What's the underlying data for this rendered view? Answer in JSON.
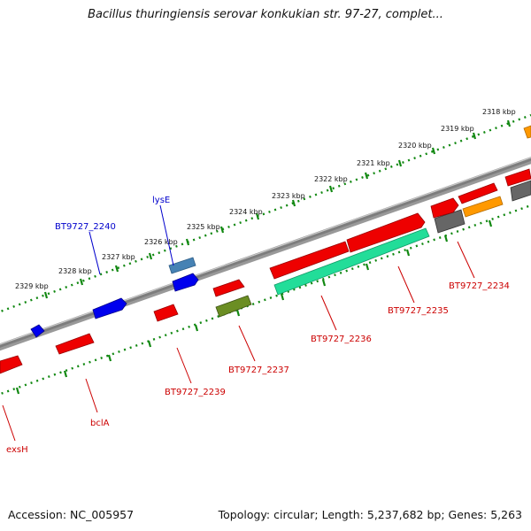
{
  "header": {
    "title": "Bacillus thuringiensis serovar konkukian str. 97-27, complet..."
  },
  "footer": {
    "accession": "Accession: NC_005957",
    "summary": "Topology: circular; Length: 5,237,682 bp; Genes: 5,263"
  },
  "scale_labels": [
    "2318 kbp",
    "2319 kbp",
    "2320 kbp",
    "2321 kbp",
    "2322 kbp",
    "2323 kbp",
    "2324 kbp",
    "2325 kbp",
    "2326 kbp",
    "2327 kbp",
    "2328 kbp",
    "2329 kbp"
  ],
  "gene_labels": [
    {
      "text": "lysE",
      "strand": "forward",
      "color": "#0000cc"
    },
    {
      "text": "BT9727_2240",
      "strand": "forward",
      "color": "#0000cc"
    },
    {
      "text": "BT9727_2234",
      "strand": "reverse",
      "color": "#cc0000"
    },
    {
      "text": "BT9727_2235",
      "strand": "reverse",
      "color": "#cc0000"
    },
    {
      "text": "BT9727_2236",
      "strand": "reverse",
      "color": "#cc0000"
    },
    {
      "text": "BT9727_2237",
      "strand": "reverse",
      "color": "#cc0000"
    },
    {
      "text": "BT9727_2239",
      "strand": "reverse",
      "color": "#cc0000"
    },
    {
      "text": "bclA",
      "strand": "reverse",
      "color": "#cc0000"
    },
    {
      "text": "exsH",
      "strand": "reverse",
      "color": "#cc0000"
    }
  ],
  "feature_colors": {
    "forward_cds": "#0000ee",
    "reverse_cds": "#ee0000",
    "rRNA": "#22dd99",
    "tRNA": "#6b8e23",
    "other": "#ff9900",
    "misc": "#666666",
    "blue_light": "#4682b4",
    "backbone": "#888888",
    "ticks": "#118811"
  }
}
